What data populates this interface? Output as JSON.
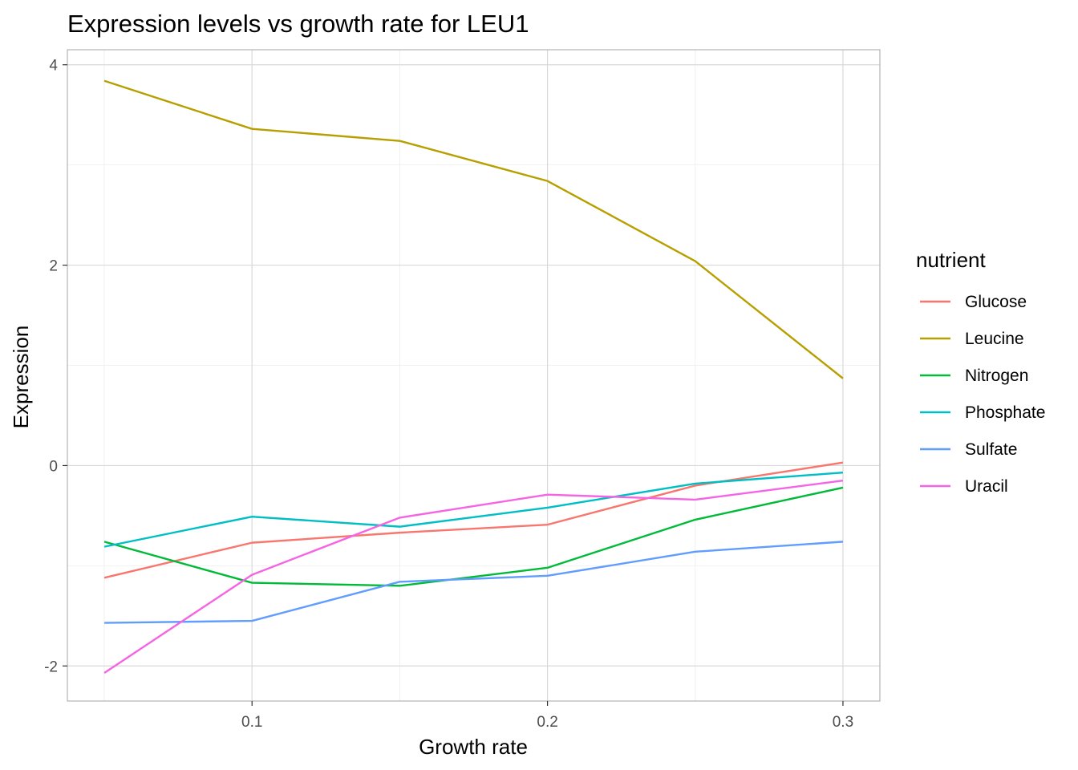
{
  "chart_data": {
    "type": "line",
    "title": "Expression levels vs growth rate for LEU1",
    "xlabel": "Growth rate",
    "ylabel": "Expression",
    "xlim": [
      0.0375,
      0.3125
    ],
    "ylim": [
      -2.35,
      4.15
    ],
    "x_ticks": [
      0.1,
      0.2,
      0.3
    ],
    "x_tick_labels": [
      "0.1",
      "0.2",
      "0.3"
    ],
    "y_ticks": [
      -2,
      0,
      2,
      4
    ],
    "y_tick_labels": [
      "-2",
      "0",
      "2",
      "4"
    ],
    "grid": true,
    "legend_title": "nutrient",
    "legend_position": "right",
    "x": [
      0.05,
      0.1,
      0.15,
      0.2,
      0.25,
      0.3
    ],
    "series": [
      {
        "name": "Glucose",
        "color": "#F8766D",
        "values": [
          -1.12,
          -0.77,
          -0.67,
          -0.59,
          -0.2,
          0.03
        ]
      },
      {
        "name": "Leucine",
        "color": "#B79F00",
        "values": [
          3.84,
          3.36,
          3.24,
          2.84,
          2.04,
          0.87
        ]
      },
      {
        "name": "Nitrogen",
        "color": "#00BA38",
        "values": [
          -0.76,
          -1.17,
          -1.2,
          -1.02,
          -0.54,
          -0.22
        ]
      },
      {
        "name": "Phosphate",
        "color": "#00BFC4",
        "values": [
          -0.81,
          -0.51,
          -0.61,
          -0.42,
          -0.18,
          -0.07
        ]
      },
      {
        "name": "Sulfate",
        "color": "#619CFF",
        "values": [
          -1.57,
          -1.55,
          -1.16,
          -1.1,
          -0.86,
          -0.76
        ]
      },
      {
        "name": "Uracil",
        "color": "#F564E3",
        "values": [
          -2.07,
          -1.09,
          -0.52,
          -0.29,
          -0.34,
          -0.15
        ]
      }
    ]
  }
}
